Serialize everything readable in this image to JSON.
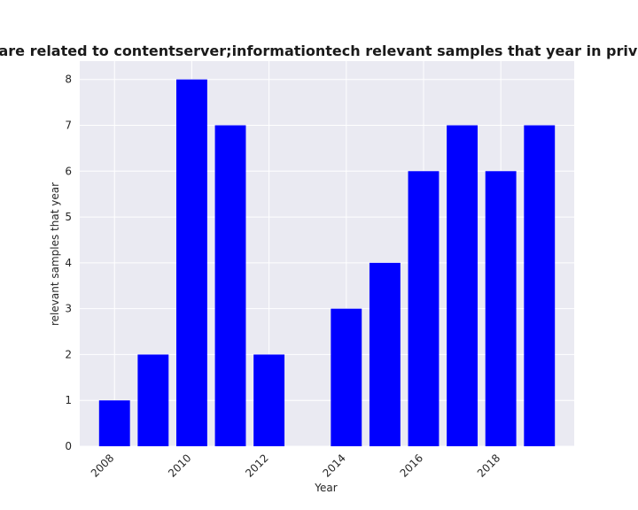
{
  "chart_data": {
    "type": "bar",
    "title": "Categories are related to contentserver;informationtech relevant samples that year in privacy policies",
    "xlabel": "Year",
    "ylabel": "relevant samples that year",
    "x": [
      2008,
      2009,
      2010,
      2011,
      2012,
      2014,
      2015,
      2016,
      2017,
      2018,
      2019
    ],
    "values": [
      1,
      2,
      8,
      7,
      2,
      3,
      4,
      6,
      7,
      6,
      7
    ],
    "xticks": [
      2008,
      2010,
      2012,
      2014,
      2016,
      2018
    ],
    "xtick_labels": [
      "2008",
      "2010",
      "2012",
      "2014",
      "2016",
      "2018"
    ],
    "yticks": [
      0,
      1,
      2,
      3,
      4,
      5,
      6,
      7,
      8
    ],
    "ytick_labels": [
      "0",
      "1",
      "2",
      "3",
      "4",
      "5",
      "6",
      "7",
      "8"
    ],
    "xlim": [
      2007.1,
      2019.9
    ],
    "ylim": [
      0,
      8.4
    ],
    "grid": true,
    "legend": "none",
    "colors": {
      "bar": "#0000ff",
      "plot_background": "#eaeaf2",
      "grid": "#ffffff"
    }
  }
}
